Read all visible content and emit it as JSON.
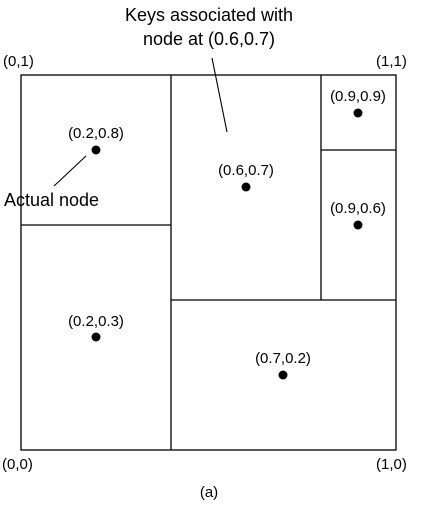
{
  "figure": {
    "caption": "(a)",
    "callout_keys_line1": "Keys associated with",
    "callout_keys_line2": "node at (0.6,0.7)",
    "callout_actual_node": "Actual node"
  },
  "corners": {
    "top_left": "(0,1)",
    "top_right": "(1,1)",
    "bottom_left": "(0,0)",
    "bottom_right": "(1,0)"
  },
  "nodes": [
    {
      "label": "(0.2,0.8)"
    },
    {
      "label": "(0.6,0.7)"
    },
    {
      "label": "(0.9,0.9)"
    },
    {
      "label": "(0.9,0.6)"
    },
    {
      "label": "(0.2,0.3)"
    },
    {
      "label": "(0.7,0.2)"
    }
  ],
  "colors": {
    "stroke": "#000000",
    "background": "#ffffff"
  }
}
